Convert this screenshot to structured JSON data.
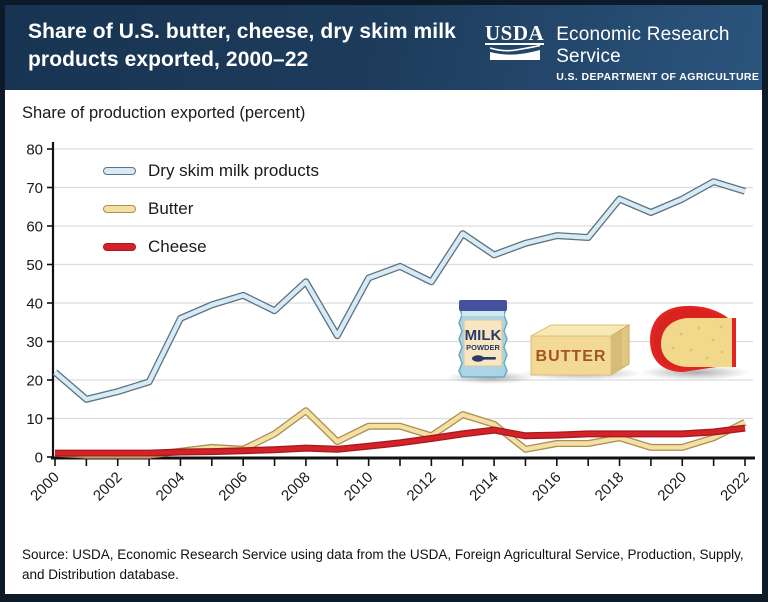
{
  "header": {
    "title": "Share of U.S. butter, cheese, dry skim milk products exported, 2000–22",
    "logo": {
      "usda": "USDA",
      "agency": "Economic Research Service",
      "dept": "U.S. DEPARTMENT OF AGRICULTURE"
    }
  },
  "chart_data": {
    "type": "line",
    "title": "Share of production exported (percent)",
    "xlabel": "",
    "ylabel": "Share of production exported (percent)",
    "ylim": [
      0,
      80
    ],
    "yticks": [
      0,
      10,
      20,
      30,
      40,
      50,
      60,
      70,
      80
    ],
    "grid": true,
    "legend_position": "upper-left-inside",
    "x": [
      2000,
      2001,
      2002,
      2003,
      2004,
      2005,
      2006,
      2007,
      2008,
      2009,
      2010,
      2011,
      2012,
      2013,
      2014,
      2015,
      2016,
      2017,
      2018,
      2019,
      2020,
      2021,
      2022
    ],
    "xtick_labels": [
      "2000",
      "2002",
      "2004",
      "2006",
      "2008",
      "2010",
      "2012",
      "2014",
      "2016",
      "2018",
      "2020",
      "2022"
    ],
    "series": [
      {
        "name": "Dry skim milk products",
        "fill": "#d7ebf6",
        "stroke": "#5f7280",
        "values": [
          22,
          15,
          17,
          19.5,
          36,
          39.5,
          42,
          38,
          45.5,
          31.5,
          46.5,
          49.5,
          45.5,
          58,
          52.5,
          55.5,
          57.5,
          57,
          67,
          63.5,
          67,
          71.5,
          69
        ]
      },
      {
        "name": "Butter",
        "fill": "#f4e0a4",
        "stroke": "#ab8f52",
        "values": [
          1,
          0.5,
          0.5,
          0.5,
          1.5,
          2.5,
          2,
          6,
          12,
          4,
          8,
          8,
          5.5,
          11,
          8.5,
          2,
          3.5,
          3.5,
          5,
          2.5,
          2.5,
          5,
          9
        ]
      },
      {
        "name": "Cheese",
        "fill": "#d42229",
        "stroke": "#a7191e",
        "values": [
          1,
          1,
          1,
          1,
          1.3,
          1.4,
          1.6,
          1.9,
          2.3,
          2,
          2.8,
          3.7,
          4.8,
          6,
          7,
          5.5,
          5.7,
          6,
          6,
          6,
          6,
          6.5,
          7.5
        ]
      }
    ]
  },
  "icons": {
    "milk_powder": {
      "line1": "MILK",
      "line2": "POWDER"
    },
    "butter": {
      "label": "BUTTER"
    }
  },
  "source": "Source: USDA, Economic Research Service using data from the USDA, Foreign Agricultural Service, Production, Supply, and Distribution database.",
  "colors": {
    "frame_border": "#0c1a2a",
    "header_navy": "#1d3b5b",
    "gridline": "#dcdcdc",
    "axis": "#111111",
    "text": "#1a1a1a"
  }
}
